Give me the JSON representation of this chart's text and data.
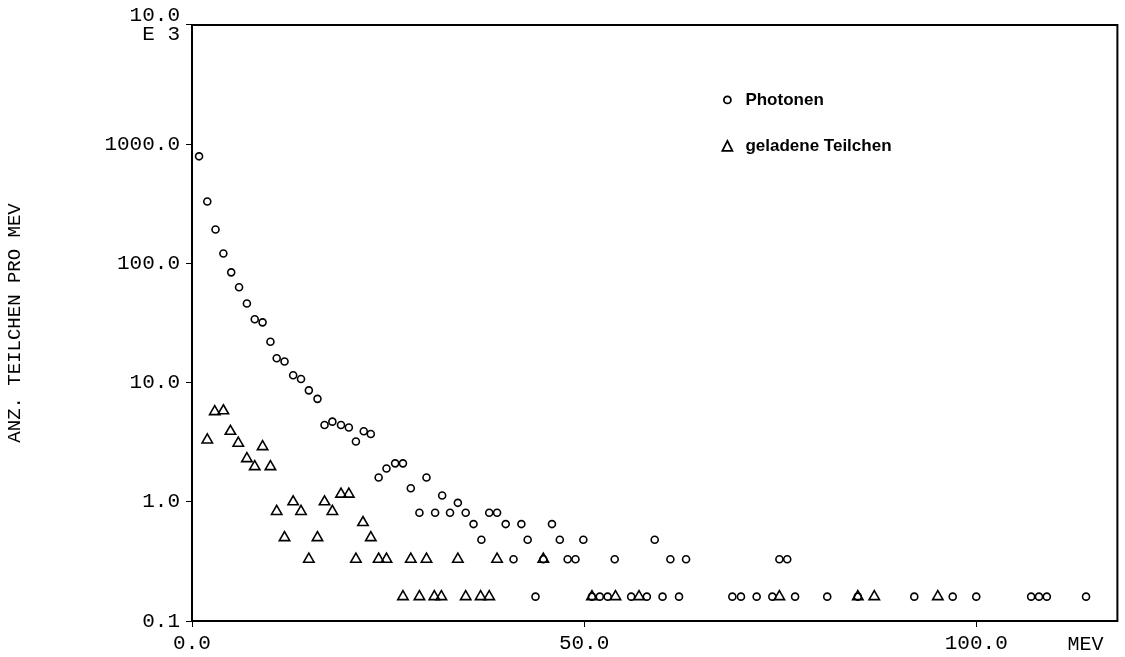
{
  "chart_data": {
    "type": "scatter",
    "xlabel": "MEV",
    "ylabel": "ANZ. TEILCHEN PRO MEV",
    "xlim": [
      0,
      118
    ],
    "xticks": [
      {
        "value": 0,
        "label": "0.0"
      },
      {
        "value": 50,
        "label": "50.0"
      },
      {
        "value": 100,
        "label": "100.0"
      }
    ],
    "ylim": [
      0.1,
      10000
    ],
    "yticks": [
      {
        "value": 0.1,
        "label": "0.1"
      },
      {
        "value": 1,
        "label": "1.0"
      },
      {
        "value": 10,
        "label": "10.0"
      },
      {
        "value": 100,
        "label": "100.0"
      },
      {
        "value": 1000,
        "label": "1000.0"
      },
      {
        "value": 10000,
        "label": "10.0\nE 3"
      }
    ],
    "log": "y",
    "grid": false,
    "legend": "top right",
    "series": [
      {
        "name": "Photonen",
        "color": "#000000",
        "marker": "circle",
        "x": [
          0.9,
          1.95,
          3.0,
          4.0,
          5.0,
          6.0,
          7.0,
          8.0,
          9.0,
          10.0,
          10.8,
          11.8,
          12.9,
          13.9,
          14.9,
          16.0,
          16.9,
          17.9,
          19.0,
          20.0,
          20.9,
          21.9,
          22.8,
          23.8,
          24.8,
          25.9,
          26.9,
          27.9,
          29.0,
          29.9,
          31.0,
          31.9,
          32.9,
          33.9,
          34.9,
          35.9,
          36.9,
          37.9,
          38.9,
          40.0,
          41.0,
          42.0,
          42.8,
          43.8,
          44.8,
          45.9,
          46.9,
          47.9,
          48.9,
          49.9,
          51.0,
          52.0,
          53.0,
          53.9,
          56.0,
          58.0,
          59.0,
          60.0,
          61.0,
          62.1,
          63.0,
          68.9,
          70.0,
          72.0,
          74.0,
          74.9,
          75.9,
          76.9,
          81.0,
          84.9,
          92.1,
          97.0,
          100.0,
          107.0,
          108.0,
          109.0,
          114.0
        ],
        "values": [
          790,
          330,
          192,
          121,
          84,
          63,
          46,
          34,
          32,
          22,
          16,
          15,
          11.5,
          10.7,
          8.6,
          7.3,
          4.4,
          4.7,
          4.4,
          4.2,
          3.2,
          3.9,
          3.7,
          1.6,
          1.9,
          2.1,
          2.1,
          1.3,
          0.81,
          1.6,
          0.81,
          1.13,
          0.81,
          0.98,
          0.81,
          0.65,
          0.48,
          0.81,
          0.81,
          0.65,
          0.33,
          0.65,
          0.48,
          0.16,
          0.33,
          0.65,
          0.48,
          0.33,
          0.33,
          0.48,
          0.16,
          0.16,
          0.16,
          0.33,
          0.16,
          0.16,
          0.48,
          0.16,
          0.33,
          0.16,
          0.33,
          0.16,
          0.16,
          0.16,
          0.16,
          0.33,
          0.33,
          0.16,
          0.16,
          0.16,
          0.16,
          0.16,
          0.16,
          0.16,
          0.16,
          0.16,
          0.16
        ]
      },
      {
        "name": "geladene Teilchen",
        "color": "#000000",
        "marker": "triangle",
        "x": [
          1.95,
          2.9,
          4.0,
          4.9,
          5.9,
          7.0,
          8.0,
          9.0,
          10.0,
          10.8,
          11.8,
          12.9,
          13.9,
          14.9,
          16.0,
          16.9,
          17.9,
          19.0,
          20.0,
          20.9,
          21.8,
          22.8,
          23.8,
          24.8,
          26.9,
          27.9,
          29.0,
          29.9,
          30.9,
          31.8,
          33.9,
          34.9,
          36.8,
          37.9,
          38.9,
          44.8,
          51.0,
          54.0,
          57.0,
          74.9,
          84.9,
          87.0,
          95.1
        ],
        "values": [
          3.3,
          5.7,
          5.8,
          3.9,
          3.1,
          2.3,
          1.97,
          2.9,
          1.97,
          0.83,
          0.5,
          1.0,
          0.83,
          0.33,
          0.5,
          1.0,
          0.83,
          1.16,
          1.16,
          0.33,
          0.67,
          0.5,
          0.33,
          0.33,
          0.16,
          0.33,
          0.16,
          0.33,
          0.16,
          0.16,
          0.33,
          0.16,
          0.16,
          0.16,
          0.33,
          0.33,
          0.16,
          0.16,
          0.16,
          0.16,
          0.16,
          0.16,
          0.16
        ]
      }
    ]
  }
}
